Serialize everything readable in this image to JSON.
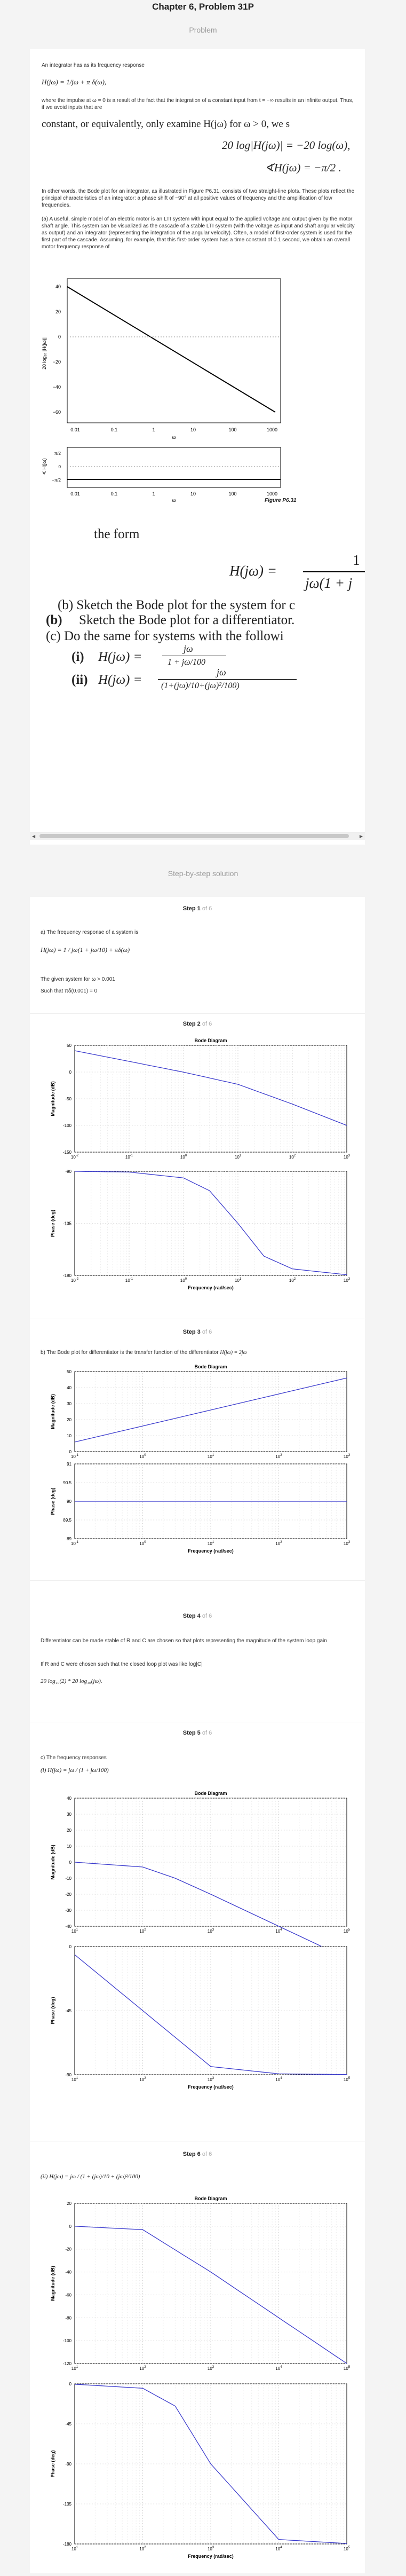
{
  "header": {
    "title": "Chapter 6, Problem 31P",
    "problem_label": "Problem",
    "solution_label": "Step-by-step solution"
  },
  "problem": {
    "intro": "An integrator has as its frequency response",
    "eq1": "H(jω) = 1/jω + π δ(ω),",
    "para1": "where the impulse at ω = 0 is a result of the fact that the integration of a constant input from t = −∞ results in an infinite output. Thus, if we avoid inputs that are",
    "para1b": "constant, or equivalently, only examine H(jω) for ω > 0, we s",
    "eq2": "20 log|H(jω)| = −20 log(ω),",
    "eq3": "∢H(jω) = −π/2 .",
    "para2": "In other words, the Bode plot for an integrator, as illustrated in Figure P6.31, consists of two straight-line plots. These plots reflect the principal characteristics of an integrator: a phase shift of −90° at all positive values of frequency and the amplification of low frequencies.",
    "para3": "(a) A useful, simple model of an electric motor is an LTI system with input equal to the applied voltage and output given by the motor shaft angle. This system can be visualized as the cascade of a stable LTI system (with the voltage as input and shaft angular velocity as output) and an integrator (representing the integration of the angular velocity). Often, a model of first-order system is used for the first part of the cascade. Assuming, for example, that this first-order system has a time constant of 0.1 second, we obtain an overall motor frequency response of",
    "fig_label": "Figure P6.31",
    "form_text": "the form",
    "eq_form": "H(jω) =",
    "eq_form_num": "1",
    "eq_form_den": "jω(1 + j",
    "b_text": "(b)  Sketch the Bode plot for the system for c",
    "b2_text": "Sketch the Bode plot for a differentiator.",
    "c_text": "(c)  Do the same for systems with the followi",
    "ci": "(i)",
    "ci_eq": "H(jω) =",
    "ci_num": "jω",
    "ci_den": "1 + jω/100",
    "cii": "(ii)",
    "cii_eq": "H(jω) =",
    "cii_num": "jω",
    "cii_den": "(1+(jω)/10+(jω)²/100)",
    "top_plot": {
      "ylabel": "20 log₁₀ |H(jω)|",
      "yticks": [
        "40",
        "20",
        "0",
        "−20",
        "−40",
        "−60"
      ],
      "xticks": [
        "0.01",
        "0.1",
        "1",
        "10",
        "100",
        "1000"
      ],
      "xlabel": "ω",
      "line": {
        "from": [
          0.01,
          40
        ],
        "to": [
          1000,
          -60
        ]
      }
    },
    "bottom_plot": {
      "ylabel": "∢ H(jω)",
      "yticks": [
        "π/2",
        "0",
        "−π/2"
      ],
      "xticks": [
        "0.01",
        "0.1",
        "1",
        "10",
        "100",
        "1000"
      ],
      "xlabel": "ω"
    }
  },
  "steps": [
    {
      "label": "Step 1",
      "of": "of 6",
      "a": "a) The frequency response of a system is",
      "eq": "H(jω) = 1 / jω(1 + jω/10) + πδ(ω)",
      "given": "The given system for  ω > 0.001",
      "such": "Such that  πδ(0.001) = 0"
    },
    {
      "label": "Step 2",
      "of": "of 6"
    },
    {
      "label": "Step 3",
      "of": "of 6",
      "b": "b) The Bode plot for differentiator is the transfer function of the differentiator",
      "beq": "H(jω) = 2jω"
    },
    {
      "label": "Step 4",
      "of": "of 6",
      "text1": "Differentiator can be made stable of R and C are chosen so that plots representing the magnitude of the system loop gain",
      "text2": "If R and C were chosen such that the closed loop plot was like  log|C|",
      "eq": "20 log₁₀(2) * 20 log₁₀(jω)."
    },
    {
      "label": "Step 5",
      "of": "of 6",
      "c": "c) The frequency responses",
      "ci": "(i)  H(jω) = jω / (1 + jω/100)"
    },
    {
      "label": "Step 6",
      "of": "of 6",
      "cii": "(ii)  H(jω) = jω / (1 + (jω)/10 + (jω)²/100)"
    }
  ],
  "chart_data": [
    {
      "type": "line",
      "title": "Bode Diagram",
      "ylabel": "Magnitude (dB)",
      "xlabel": "Frequency (rad/sec)",
      "yticks": [
        "50",
        "0",
        "-50",
        "-100",
        "-150"
      ],
      "ylim": [
        -150,
        50
      ],
      "xlim": [
        0.01,
        1000
      ],
      "xscale": "log",
      "series": [
        {
          "x": [
            0.01,
            0.1,
            1,
            10,
            100,
            1000
          ],
          "y": [
            40,
            20,
            -0.2,
            -23,
            -60,
            -100
          ]
        }
      ]
    },
    {
      "type": "line",
      "ylabel": "Phase (deg)",
      "xlabel": "Frequency (rad/sec)",
      "yticks": [
        "-90",
        "-135",
        "-180"
      ],
      "ylim": [
        -180,
        -90
      ],
      "xlim": [
        0.01,
        1000
      ],
      "xscale": "log",
      "series": [
        {
          "x": [
            0.01,
            0.1,
            1,
            3,
            10,
            30,
            100,
            1000
          ],
          "y": [
            -90,
            -90.6,
            -95.7,
            -106.7,
            -135,
            -163.3,
            -174.3,
            -179.4
          ]
        }
      ]
    },
    {
      "type": "line",
      "title": "Bode Diagram",
      "ylabel": "Magnitude (dB)",
      "xlabel": "Frequency (rad/sec)",
      "yticks": [
        "50",
        "40",
        "30",
        "20",
        "10",
        "0"
      ],
      "ylim": [
        0,
        50
      ],
      "xlim": [
        0.1,
        1000
      ],
      "xscale": "log",
      "series": [
        {
          "x": [
            0.1,
            1000
          ],
          "y": [
            6,
            46
          ]
        }
      ]
    },
    {
      "type": "line",
      "ylabel": "Phase (deg)",
      "xlabel": "Frequency (rad/sec)",
      "yticks": [
        "91",
        "90.5",
        "90",
        "89.5",
        "89"
      ],
      "ylim": [
        89,
        91
      ],
      "xlim": [
        0.1,
        1000
      ],
      "xscale": "log",
      "series": [
        {
          "x": [
            0.1,
            1000
          ],
          "y": [
            90,
            90
          ]
        }
      ]
    },
    {
      "type": "line",
      "title": "Bode Diagram",
      "ylabel": "Magnitude (dB)",
      "xlabel": "Frequency (rad/sec)",
      "yticks": [
        "40",
        "30",
        "20",
        "10",
        "0",
        "-10",
        "-20",
        "-30",
        "-40"
      ],
      "ylim": [
        -40,
        40
      ],
      "xlim": [
        10,
        100000
      ],
      "xscale": "log",
      "series": [
        {
          "x": [
            10,
            100,
            300,
            1000,
            10000,
            100000
          ],
          "y": [
            0,
            -3,
            -10,
            -20,
            -40,
            -60
          ]
        }
      ]
    },
    {
      "type": "line",
      "ylabel": "Phase (deg)",
      "xlabel": "Frequency (rad/sec)",
      "yticks": [
        "0",
        "-45",
        "-90"
      ],
      "ylim": [
        -90,
        0
      ],
      "xlim": [
        10,
        100000
      ],
      "xscale": "log",
      "series": [
        {
          "x": [
            10,
            100,
            1000,
            10000,
            100000
          ],
          "y": [
            -5.7,
            -45,
            -84.3,
            -89.4,
            -89.9
          ]
        }
      ]
    },
    {
      "type": "line",
      "title": "Bode Diagram",
      "ylabel": "Magnitude (dB)",
      "xlabel": "Frequency (rad/sec)",
      "yticks": [
        "20",
        "0",
        "-20",
        "-40",
        "-60",
        "-80",
        "-100",
        "-120"
      ],
      "ylim": [
        -120,
        20
      ],
      "xlim": [
        10,
        100000
      ],
      "xscale": "log",
      "series": [
        {
          "x": [
            10,
            100,
            1000,
            10000,
            100000
          ],
          "y": [
            0,
            -3,
            -40,
            -80,
            -120
          ]
        }
      ]
    },
    {
      "type": "line",
      "ylabel": "Phase (deg)",
      "xlabel": "Frequency (rad/sec)",
      "yticks": [
        "0",
        "-45",
        "-90",
        "-135",
        "-180"
      ],
      "ylim": [
        -180,
        0
      ],
      "xlim": [
        10,
        100000
      ],
      "xscale": "log",
      "series": [
        {
          "x": [
            10,
            100,
            300,
            1000,
            10000,
            100000
          ],
          "y": [
            -0.5,
            -5,
            -25,
            -90,
            -175,
            -179.5
          ]
        }
      ]
    }
  ]
}
